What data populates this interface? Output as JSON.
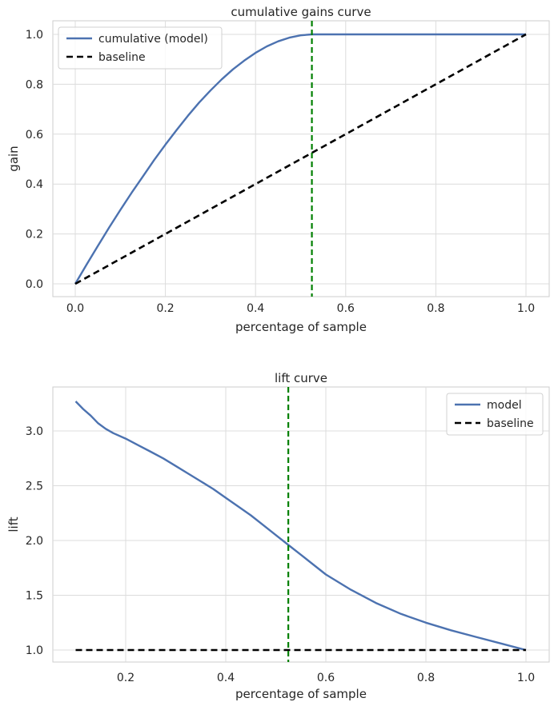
{
  "chart_data": [
    {
      "type": "line",
      "title": "cumulative gains curve",
      "xlabel": "percentage of sample",
      "ylabel": "gain",
      "xlim": [
        -0.05,
        1.05
      ],
      "ylim": [
        -0.04,
        1.05
      ],
      "xticks": [
        "0.0",
        "0.2",
        "0.4",
        "0.6",
        "0.8",
        "1.0"
      ],
      "yticks": [
        "0.0",
        "0.2",
        "0.4",
        "0.6",
        "0.8",
        "1.0"
      ],
      "grid": true,
      "legend_position": "upper left",
      "vline": {
        "x": 0.525,
        "color": "#008000",
        "style": "dashed"
      },
      "series": [
        {
          "name": "cumulative (model)",
          "color": "#4c72b0",
          "style": "solid",
          "x": [
            0,
            0.025,
            0.05,
            0.075,
            0.1,
            0.125,
            0.15,
            0.175,
            0.2,
            0.225,
            0.25,
            0.275,
            0.3,
            0.325,
            0.35,
            0.375,
            0.4,
            0.425,
            0.45,
            0.475,
            0.5,
            0.525,
            0.55,
            0.6,
            0.65,
            0.7,
            0.75,
            0.8,
            0.85,
            0.9,
            0.95,
            1.0
          ],
          "y": [
            0,
            0.077,
            0.152,
            0.225,
            0.296,
            0.365,
            0.43,
            0.496,
            0.558,
            0.617,
            0.674,
            0.727,
            0.775,
            0.82,
            0.86,
            0.895,
            0.926,
            0.952,
            0.972,
            0.987,
            0.996,
            1.0,
            1.0,
            1.0,
            1.0,
            1.0,
            1.0,
            1.0,
            1.0,
            1.0,
            1.0,
            1.0
          ]
        },
        {
          "name": "baseline",
          "color": "#000000",
          "style": "dashed",
          "x": [
            0,
            1
          ],
          "y": [
            0,
            1
          ]
        }
      ]
    },
    {
      "type": "line",
      "title": "lift curve",
      "xlabel": "percentage of sample",
      "ylabel": "lift",
      "xlim": [
        0.055,
        1.045
      ],
      "ylim": [
        0.9,
        3.37
      ],
      "xticks": [
        "0.2",
        "0.4",
        "0.6",
        "0.8",
        "1.0"
      ],
      "yticks": [
        "1.0",
        "1.5",
        "2.0",
        "2.5",
        "3.0",
        ""
      ],
      "grid": true,
      "legend_position": "upper right",
      "vline": {
        "x": 0.525,
        "color": "#008000",
        "style": "dashed"
      },
      "series": [
        {
          "name": "model",
          "color": "#4c72b0",
          "style": "solid",
          "x": [
            0.1,
            0.115,
            0.13,
            0.145,
            0.16,
            0.175,
            0.2,
            0.225,
            0.25,
            0.275,
            0.3,
            0.325,
            0.35,
            0.375,
            0.4,
            0.425,
            0.45,
            0.475,
            0.5,
            0.525,
            0.55,
            0.6,
            0.65,
            0.7,
            0.75,
            0.8,
            0.85,
            0.9,
            0.95,
            1.0
          ],
          "y": [
            3.27,
            3.2,
            3.14,
            3.07,
            3.02,
            2.98,
            2.93,
            2.87,
            2.81,
            2.75,
            2.68,
            2.61,
            2.54,
            2.47,
            2.39,
            2.31,
            2.23,
            2.14,
            2.05,
            1.96,
            1.87,
            1.69,
            1.55,
            1.43,
            1.33,
            1.25,
            1.18,
            1.12,
            1.06,
            1.0
          ]
        },
        {
          "name": "baseline",
          "color": "#000000",
          "style": "dashed",
          "x": [
            0.1,
            1.0
          ],
          "y": [
            1.0,
            1.0
          ]
        }
      ]
    }
  ]
}
